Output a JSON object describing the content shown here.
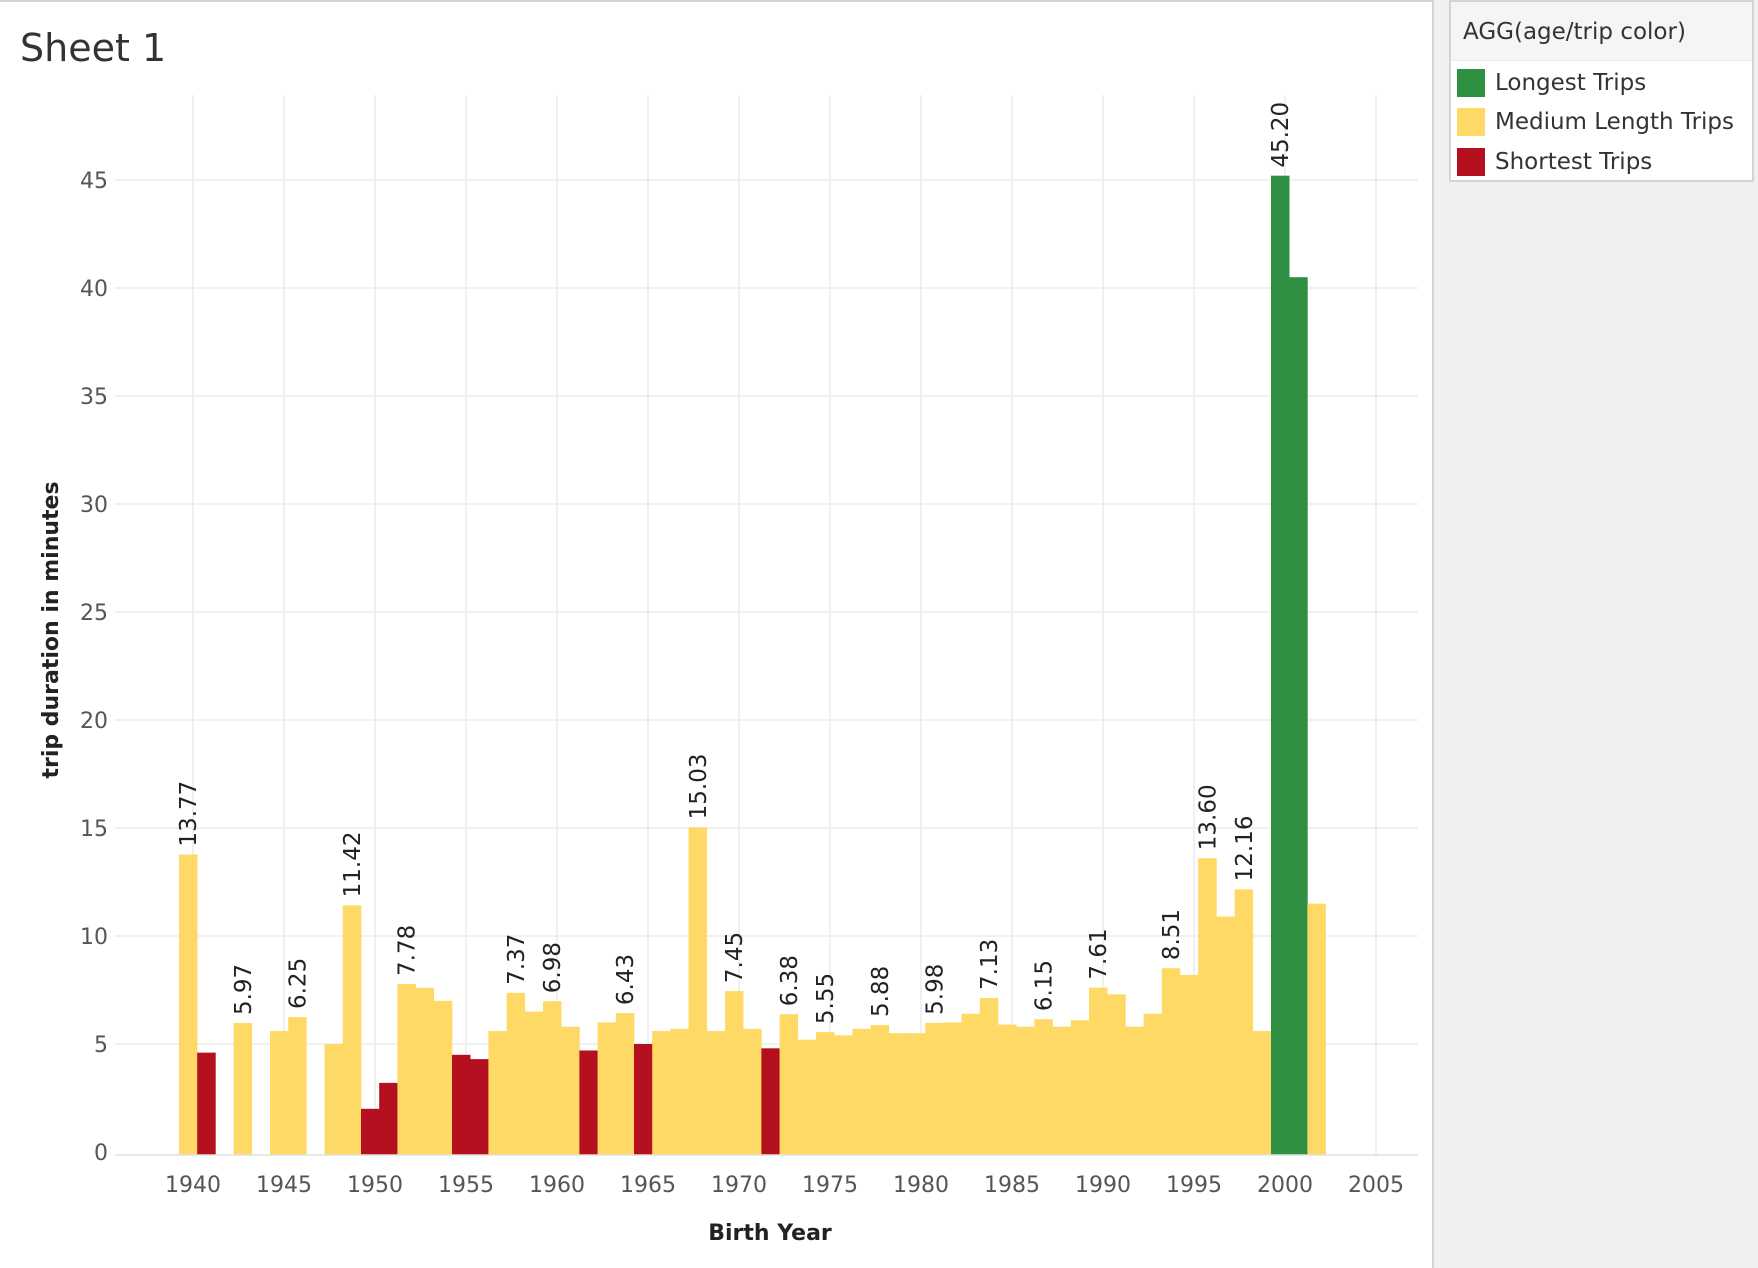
{
  "sheet": {
    "title": "Sheet 1"
  },
  "legend": {
    "title": "AGG(age/trip color)",
    "items": [
      {
        "key": "longest",
        "label": "Longest Trips",
        "color": "#2e9040"
      },
      {
        "key": "medium",
        "label": "Medium Length Trips",
        "color": "#ffd966"
      },
      {
        "key": "shortest",
        "label": "Shortest Trips",
        "color": "#b5101f"
      }
    ]
  },
  "chart_data": {
    "type": "bar",
    "xlabel": "Birth Year",
    "ylabel": "trip duration in minutes",
    "xlim": [
      1939.5,
      2005.5
    ],
    "ylim": [
      0,
      48
    ],
    "xticks": [
      1940,
      1945,
      1950,
      1955,
      1960,
      1965,
      1970,
      1975,
      1980,
      1985,
      1990,
      1995,
      2000,
      2005
    ],
    "yticks": [
      0,
      5,
      10,
      15,
      20,
      25,
      30,
      35,
      40,
      45
    ],
    "grid": true,
    "legend_position": "top-right",
    "bars": [
      {
        "x": 1940,
        "value": 13.77,
        "category": "medium",
        "label": "13.77"
      },
      {
        "x": 1941,
        "value": 4.6,
        "category": "shortest"
      },
      {
        "x": 1943,
        "value": 5.97,
        "category": "medium",
        "label": "5.97"
      },
      {
        "x": 1945,
        "value": 5.6,
        "category": "medium"
      },
      {
        "x": 1946,
        "value": 6.25,
        "category": "medium",
        "label": "6.25"
      },
      {
        "x": 1948,
        "value": 5.0,
        "category": "medium"
      },
      {
        "x": 1949,
        "value": 11.42,
        "category": "medium",
        "label": "11.42"
      },
      {
        "x": 1950,
        "value": 2.0,
        "category": "shortest"
      },
      {
        "x": 1951,
        "value": 3.2,
        "category": "shortest"
      },
      {
        "x": 1952,
        "value": 7.78,
        "category": "medium",
        "label": "7.78"
      },
      {
        "x": 1953,
        "value": 7.6,
        "category": "medium"
      },
      {
        "x": 1954,
        "value": 7.0,
        "category": "medium"
      },
      {
        "x": 1955,
        "value": 4.5,
        "category": "shortest"
      },
      {
        "x": 1956,
        "value": 4.3,
        "category": "shortest"
      },
      {
        "x": 1957,
        "value": 5.6,
        "category": "medium"
      },
      {
        "x": 1958,
        "value": 7.37,
        "category": "medium",
        "label": "7.37"
      },
      {
        "x": 1959,
        "value": 6.5,
        "category": "medium"
      },
      {
        "x": 1960,
        "value": 6.98,
        "category": "medium",
        "label": "6.98"
      },
      {
        "x": 1961,
        "value": 5.8,
        "category": "medium"
      },
      {
        "x": 1962,
        "value": 4.7,
        "category": "shortest"
      },
      {
        "x": 1963,
        "value": 6.0,
        "category": "medium"
      },
      {
        "x": 1964,
        "value": 6.43,
        "category": "medium",
        "label": "6.43"
      },
      {
        "x": 1965,
        "value": 5.0,
        "category": "shortest"
      },
      {
        "x": 1966,
        "value": 5.6,
        "category": "medium"
      },
      {
        "x": 1967,
        "value": 5.7,
        "category": "medium"
      },
      {
        "x": 1968,
        "value": 15.03,
        "category": "medium",
        "label": "15.03"
      },
      {
        "x": 1969,
        "value": 5.6,
        "category": "medium"
      },
      {
        "x": 1970,
        "value": 7.45,
        "category": "medium",
        "label": "7.45"
      },
      {
        "x": 1971,
        "value": 5.7,
        "category": "medium"
      },
      {
        "x": 1972,
        "value": 4.8,
        "category": "shortest"
      },
      {
        "x": 1973,
        "value": 6.38,
        "category": "medium",
        "label": "6.38"
      },
      {
        "x": 1974,
        "value": 5.2,
        "category": "medium"
      },
      {
        "x": 1975,
        "value": 5.55,
        "category": "medium",
        "label": "5.55"
      },
      {
        "x": 1976,
        "value": 5.4,
        "category": "medium"
      },
      {
        "x": 1977,
        "value": 5.7,
        "category": "medium"
      },
      {
        "x": 1978,
        "value": 5.88,
        "category": "medium",
        "label": "5.88"
      },
      {
        "x": 1979,
        "value": 5.5,
        "category": "medium"
      },
      {
        "x": 1980,
        "value": 5.5,
        "category": "medium"
      },
      {
        "x": 1981,
        "value": 5.98,
        "category": "medium",
        "label": "5.98"
      },
      {
        "x": 1982,
        "value": 6.0,
        "category": "medium"
      },
      {
        "x": 1983,
        "value": 6.4,
        "category": "medium"
      },
      {
        "x": 1984,
        "value": 7.13,
        "category": "medium",
        "label": "7.13"
      },
      {
        "x": 1985,
        "value": 5.9,
        "category": "medium"
      },
      {
        "x": 1986,
        "value": 5.8,
        "category": "medium"
      },
      {
        "x": 1987,
        "value": 6.15,
        "category": "medium",
        "label": "6.15"
      },
      {
        "x": 1988,
        "value": 5.8,
        "category": "medium"
      },
      {
        "x": 1989,
        "value": 6.1,
        "category": "medium"
      },
      {
        "x": 1990,
        "value": 7.61,
        "category": "medium",
        "label": "7.61"
      },
      {
        "x": 1991,
        "value": 7.3,
        "category": "medium"
      },
      {
        "x": 1992,
        "value": 5.8,
        "category": "medium"
      },
      {
        "x": 1993,
        "value": 6.4,
        "category": "medium"
      },
      {
        "x": 1994,
        "value": 8.51,
        "category": "medium",
        "label": "8.51"
      },
      {
        "x": 1995,
        "value": 8.2,
        "category": "medium"
      },
      {
        "x": 1996,
        "value": 13.6,
        "category": "medium",
        "label": "13.60"
      },
      {
        "x": 1997,
        "value": 10.9,
        "category": "medium"
      },
      {
        "x": 1998,
        "value": 12.16,
        "category": "medium",
        "label": "12.16"
      },
      {
        "x": 1999,
        "value": 5.6,
        "category": "medium"
      },
      {
        "x": 2000,
        "value": 45.2,
        "category": "longest",
        "label": "45.20"
      },
      {
        "x": 2001,
        "value": 40.5,
        "category": "longest"
      },
      {
        "x": 2002,
        "value": 11.5,
        "category": "medium"
      }
    ]
  }
}
